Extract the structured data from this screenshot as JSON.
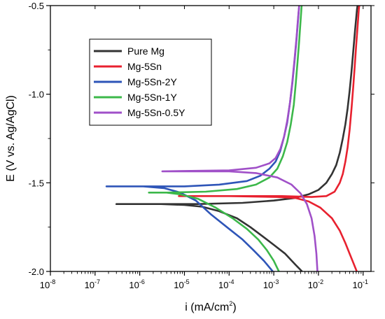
{
  "chart_data": {
    "type": "line",
    "xlabel": "i (mA/cm²)",
    "xlabel_base": "i (mA/cm",
    "xlabel_sup": "2",
    "xlabel_tail": ")",
    "ylabel": "E (V vs. Ag/AgCl)",
    "x_scale": "log",
    "xlim": [
      1e-08,
      0.15
    ],
    "ylim": [
      -2.0,
      -0.5
    ],
    "x_ticks": [
      {
        "exp": -8,
        "label": "10",
        "sup": "-8"
      },
      {
        "exp": -7,
        "label": "10",
        "sup": "-7"
      },
      {
        "exp": -6,
        "label": "10",
        "sup": "-6"
      },
      {
        "exp": -5,
        "label": "10",
        "sup": "-5"
      },
      {
        "exp": -4,
        "label": "10",
        "sup": "-4"
      },
      {
        "exp": -3,
        "label": "10",
        "sup": "-3"
      },
      {
        "exp": -2,
        "label": "10",
        "sup": "-2"
      },
      {
        "exp": -1,
        "label": "10",
        "sup": "-1"
      }
    ],
    "y_ticks": [
      {
        "value": -0.5,
        "label": "-0.5"
      },
      {
        "value": -1.0,
        "label": "-1.0"
      },
      {
        "value": -1.5,
        "label": "-1.5"
      },
      {
        "value": -2.0,
        "label": "-2.0"
      }
    ],
    "legend_position": "top-left",
    "grid": false,
    "series": [
      {
        "name": "Pure Mg",
        "color": "#333333",
        "points": [
          [
            0.0043,
            -2.0
          ],
          [
            0.003,
            -1.96
          ],
          [
            0.0018,
            -1.9
          ],
          [
            0.001,
            -1.85
          ],
          [
            0.00055,
            -1.8
          ],
          [
            0.0003,
            -1.75
          ],
          [
            0.00015,
            -1.7
          ],
          [
            6e-05,
            -1.66
          ],
          [
            2.5e-05,
            -1.635
          ],
          [
            1e-05,
            -1.625
          ],
          [
            3e-06,
            -1.62
          ],
          [
            3e-07,
            -1.62
          ],
          [
            3e-06,
            -1.62
          ],
          [
            2e-05,
            -1.62
          ],
          [
            0.0002,
            -1.613
          ],
          [
            0.001,
            -1.6
          ],
          [
            0.003,
            -1.585
          ],
          [
            0.006,
            -1.565
          ],
          [
            0.01,
            -1.54
          ],
          [
            0.015,
            -1.5
          ],
          [
            0.02,
            -1.45
          ],
          [
            0.025,
            -1.4
          ],
          [
            0.03,
            -1.33
          ],
          [
            0.035,
            -1.25
          ],
          [
            0.04,
            -1.17
          ],
          [
            0.045,
            -1.08
          ],
          [
            0.05,
            -0.98
          ],
          [
            0.055,
            -0.87
          ],
          [
            0.06,
            -0.76
          ],
          [
            0.066,
            -0.64
          ],
          [
            0.073,
            -0.52
          ],
          [
            0.075,
            -0.5
          ]
        ]
      },
      {
        "name": "Mg-5Sn",
        "color": "#e8212f",
        "points": [
          [
            0.072,
            -2.0
          ],
          [
            0.06,
            -1.95
          ],
          [
            0.05,
            -1.9
          ],
          [
            0.04,
            -1.84
          ],
          [
            0.03,
            -1.77
          ],
          [
            0.02,
            -1.7
          ],
          [
            0.011,
            -1.64
          ],
          [
            0.006,
            -1.605
          ],
          [
            0.003,
            -1.585
          ],
          [
            0.0012,
            -1.58
          ],
          [
            0.0001,
            -1.575
          ],
          [
            7.5e-06,
            -1.575
          ],
          [
            0.0001,
            -1.575
          ],
          [
            0.0015,
            -1.575
          ],
          [
            0.007,
            -1.58
          ],
          [
            0.015,
            -1.575
          ],
          [
            0.023,
            -1.55
          ],
          [
            0.03,
            -1.5
          ],
          [
            0.035,
            -1.45
          ],
          [
            0.04,
            -1.38
          ],
          [
            0.045,
            -1.3
          ],
          [
            0.05,
            -1.2
          ],
          [
            0.055,
            -1.08
          ],
          [
            0.06,
            -0.96
          ],
          [
            0.065,
            -0.84
          ],
          [
            0.07,
            -0.72
          ],
          [
            0.075,
            -0.62
          ],
          [
            0.08,
            -0.52
          ],
          [
            0.082,
            -0.5
          ]
        ]
      },
      {
        "name": "Mg-5Sn-2Y",
        "color": "#2e55b8",
        "points": [
          [
            0.00095,
            -2.0
          ],
          [
            0.0006,
            -1.94
          ],
          [
            0.00035,
            -1.88
          ],
          [
            0.0002,
            -1.82
          ],
          [
            0.0001,
            -1.76
          ],
          [
            4e-05,
            -1.68
          ],
          [
            1.8e-05,
            -1.6
          ],
          [
            8e-06,
            -1.555
          ],
          [
            3.5e-06,
            -1.53
          ],
          [
            1.2e-06,
            -1.52
          ],
          [
            1.8e-07,
            -1.52
          ],
          [
            1.2e-06,
            -1.52
          ],
          [
            1e-05,
            -1.52
          ],
          [
            6e-05,
            -1.51
          ],
          [
            0.00025,
            -1.49
          ],
          [
            0.0005,
            -1.46
          ],
          [
            0.0008,
            -1.42
          ],
          [
            0.0011,
            -1.38
          ],
          [
            0.0014,
            -1.32
          ],
          [
            0.0017,
            -1.24
          ],
          [
            0.002,
            -1.16
          ],
          [
            0.0023,
            -1.05
          ],
          [
            0.0026,
            -0.94
          ],
          [
            0.0029,
            -0.82
          ],
          [
            0.0032,
            -0.7
          ],
          [
            0.0035,
            -0.58
          ],
          [
            0.0037,
            -0.5
          ]
        ]
      },
      {
        "name": "Mg-5Sn-1Y",
        "color": "#3cb84a",
        "points": [
          [
            0.0013,
            -2.0
          ],
          [
            0.001,
            -1.94
          ],
          [
            0.0007,
            -1.88
          ],
          [
            0.00045,
            -1.82
          ],
          [
            0.00025,
            -1.76
          ],
          [
            0.00012,
            -1.7
          ],
          [
            5e-05,
            -1.64
          ],
          [
            2e-05,
            -1.59
          ],
          [
            8e-06,
            -1.565
          ],
          [
            4e-06,
            -1.555
          ],
          [
            1.6e-06,
            -1.555
          ],
          [
            4e-06,
            -1.555
          ],
          [
            3e-05,
            -1.55
          ],
          [
            0.00015,
            -1.535
          ],
          [
            0.0004,
            -1.51
          ],
          [
            0.0008,
            -1.47
          ],
          [
            0.0012,
            -1.42
          ],
          [
            0.0016,
            -1.35
          ],
          [
            0.002,
            -1.27
          ],
          [
            0.0024,
            -1.17
          ],
          [
            0.0028,
            -1.06
          ],
          [
            0.0031,
            -0.94
          ],
          [
            0.0034,
            -0.82
          ],
          [
            0.0037,
            -0.7
          ],
          [
            0.004,
            -0.58
          ],
          [
            0.0042,
            -0.5
          ]
        ]
      },
      {
        "name": "Mg-5Sn-0.5Y",
        "color": "#a050c8",
        "points": [
          [
            0.0095,
            -2.0
          ],
          [
            0.009,
            -1.9
          ],
          [
            0.0082,
            -1.8
          ],
          [
            0.007,
            -1.7
          ],
          [
            0.0055,
            -1.62
          ],
          [
            0.004,
            -1.56
          ],
          [
            0.0025,
            -1.51
          ],
          [
            0.0012,
            -1.47
          ],
          [
            0.0004,
            -1.445
          ],
          [
            0.0001,
            -1.435
          ],
          [
            3.2e-06,
            -1.435
          ],
          [
            0.0001,
            -1.43
          ],
          [
            0.0004,
            -1.415
          ],
          [
            0.0008,
            -1.39
          ],
          [
            0.0011,
            -1.36
          ],
          [
            0.0014,
            -1.31
          ],
          [
            0.0017,
            -1.24
          ],
          [
            0.002,
            -1.15
          ],
          [
            0.0023,
            -1.05
          ],
          [
            0.0026,
            -0.93
          ],
          [
            0.0029,
            -0.81
          ],
          [
            0.0032,
            -0.69
          ],
          [
            0.0035,
            -0.57
          ],
          [
            0.0037,
            -0.5
          ]
        ]
      }
    ]
  }
}
